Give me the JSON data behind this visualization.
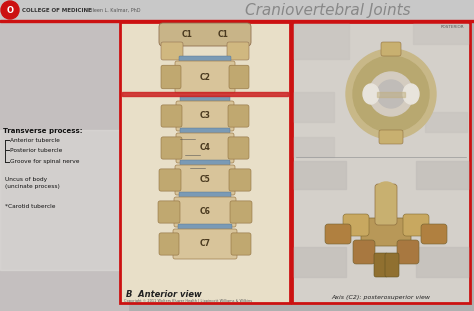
{
  "title": "Craniovertebral Joints",
  "subtitle": "Eileen L. Kalmar, PhD",
  "institution": "COLLEGE OF MEDICINE",
  "red_accent": "#cc1111",
  "left_label_title": "Transverse process:",
  "left_labels": [
    "Anterior tubercle",
    "Posterior tubercle",
    "Groove for spinal nerve",
    "Uncus of body\n(uncinate process)",
    "*Carotid tubercle"
  ],
  "bottom_label_left": "B  Anterior view",
  "bottom_label_right": "Axis (C2): posterosuperior view",
  "header_bg": "#c8c8c8",
  "body_bg": "#b0b0b0",
  "left_blur_bg": "#c0bcbc",
  "spine_panel_bg": "#e8dfc8",
  "right_panel_bg": "#d8d4cc",
  "spine_bone": "#d8c49a",
  "spine_bone_dark": "#c0a870",
  "disc_blue": "#7a9ab5",
  "red_line": "#cc2222",
  "fig_w": 4.74,
  "fig_h": 3.11,
  "dpi": 100
}
